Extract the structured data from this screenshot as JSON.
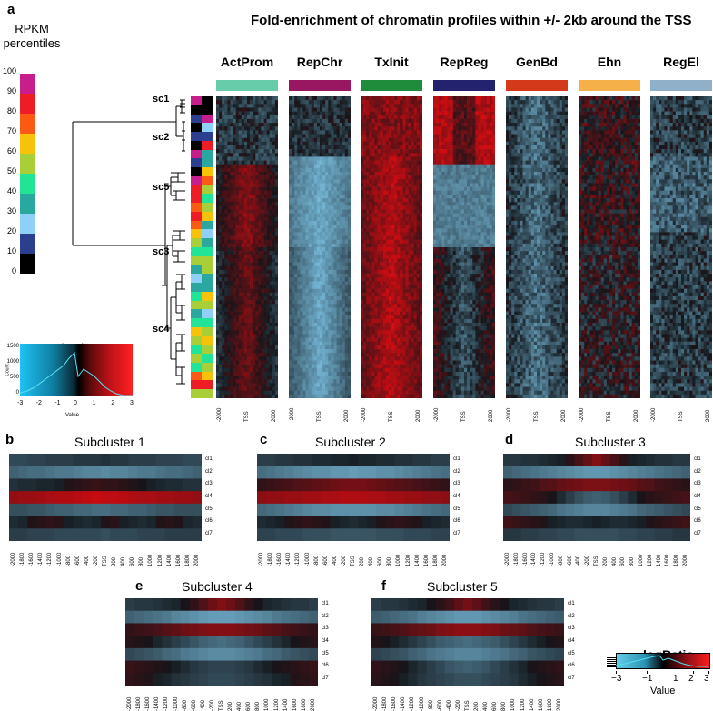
{
  "panel_a": {
    "letter": "a",
    "title": "Fold-enrichment of chromatin profiles within +/- 2kb around the TSS",
    "rpkm_title_line1": "RPKM",
    "rpkm_title_line2": "percentiles",
    "percentiles": [
      "100",
      "90",
      "80",
      "70",
      "60",
      "50",
      "40",
      "30",
      "20",
      "10",
      "0"
    ],
    "percentile_colors": [
      "#c81e8c",
      "#ee1c24",
      "#fb5a14",
      "#f6c20a",
      "#a9cf38",
      "#22e496",
      "#2aa8a0",
      "#8ed0f6",
      "#2b3f8e",
      "#000000"
    ],
    "columns": [
      {
        "label": "ActProm",
        "color": "#66ccaa"
      },
      {
        "label": "RepChr",
        "color": "#991660"
      },
      {
        "label": "TxInit",
        "color": "#1e8c3a"
      },
      {
        "label": "RepReg",
        "color": "#22226e"
      },
      {
        "label": "GenBd",
        "color": "#d43a1a"
      },
      {
        "label": "Ehn",
        "color": "#f6b04a"
      },
      {
        "label": "RegEl",
        "color": "#8fb0c8"
      }
    ],
    "subclusters": [
      "sc1",
      "sc2",
      "sc5",
      "sc3",
      "sc4"
    ],
    "x_ticks": [
      "-2000",
      "TSS",
      "2000"
    ],
    "key": {
      "title": "logRatio",
      "ylabel": "Count",
      "xlabel": "Value",
      "yticks": [
        "0",
        "500",
        "1000",
        "1500"
      ],
      "xticks": [
        "-3",
        "-2",
        "-1",
        "0",
        "1",
        "2",
        "3"
      ]
    }
  },
  "subcluster_panels": [
    {
      "letter": "b",
      "title": "Subcluster 1"
    },
    {
      "letter": "c",
      "title": "Subcluster 2"
    },
    {
      "letter": "d",
      "title": "Subcluster 3"
    },
    {
      "letter": "e",
      "title": "Subcluster 4"
    },
    {
      "letter": "f",
      "title": "Subcluster 5"
    }
  ],
  "row_labels": [
    "cl1",
    "cl2",
    "cl3",
    "cl4",
    "cl5",
    "cl6",
    "cl7"
  ],
  "bin_labels": [
    "-2000",
    "-1800",
    "-1600",
    "-1400",
    "-1200",
    "-1000",
    "-800",
    "-600",
    "-400",
    "-200",
    "TSS",
    "200",
    "400",
    "600",
    "800",
    "1000",
    "1200",
    "1400",
    "1600",
    "1800",
    "2000"
  ],
  "legend": {
    "title": "logRatio",
    "ticks": [
      "−3",
      "−1",
      "1",
      "2",
      "3"
    ],
    "xlabel": "Value"
  },
  "chart_data": [
    {
      "type": "heatmap",
      "title": "Subcluster 1",
      "rows": [
        "cl1",
        "cl2",
        "cl3",
        "cl4",
        "cl5",
        "cl6",
        "cl7"
      ],
      "columns": [
        "-2000",
        "-1800",
        "-1600",
        "-1400",
        "-1200",
        "-1000",
        "-800",
        "-600",
        "-400",
        "-200",
        "TSS",
        "200",
        "400",
        "600",
        "800",
        "1000",
        "1200",
        "1400",
        "1600",
        "1800",
        "2000"
      ],
      "values": [
        [
          -0.8,
          -0.8,
          -0.7,
          -0.7,
          -0.6,
          -0.6,
          -0.6,
          -0.5,
          -0.5,
          -0.5,
          -0.4,
          -0.5,
          -0.5,
          -0.6,
          -0.6,
          -0.6,
          -0.7,
          -0.7,
          -0.7,
          -0.8,
          -0.8
        ],
        [
          -1.2,
          -1.3,
          -1.4,
          -1.4,
          -1.5,
          -1.6,
          -1.6,
          -1.7,
          -1.8,
          -1.8,
          -1.9,
          -1.8,
          -1.8,
          -1.7,
          -1.6,
          -1.6,
          -1.5,
          -1.4,
          -1.4,
          -1.3,
          -1.2
        ],
        [
          -0.4,
          -0.3,
          -0.3,
          -0.2,
          -0.2,
          -0.1,
          0.1,
          0.2,
          0.3,
          0.4,
          0.3,
          0.3,
          0.2,
          0.1,
          0.0,
          -0.1,
          -0.2,
          -0.3,
          -0.3,
          -0.4,
          -0.4
        ],
        [
          1.6,
          1.7,
          1.7,
          1.8,
          1.9,
          2.0,
          2.0,
          2.1,
          2.2,
          2.3,
          2.2,
          2.2,
          2.1,
          2.0,
          1.9,
          1.9,
          1.8,
          1.8,
          1.7,
          1.7,
          1.6
        ],
        [
          -0.9,
          -0.9,
          -1.0,
          -1.0,
          -1.1,
          -1.2,
          -1.2,
          -1.3,
          -1.3,
          -1.4,
          -1.4,
          -1.3,
          -1.3,
          -1.2,
          -1.2,
          -1.1,
          -1.0,
          -1.0,
          -0.9,
          -0.9,
          -0.9
        ],
        [
          -0.3,
          -0.2,
          0.1,
          0.2,
          0.3,
          0.2,
          -0.1,
          -0.2,
          -0.3,
          -0.2,
          0.1,
          0.2,
          -0.1,
          -0.2,
          -0.3,
          -0.2,
          0.1,
          0.2,
          0.1,
          -0.2,
          -0.3
        ],
        [
          -0.6,
          -0.6,
          -0.7,
          -0.7,
          -0.7,
          -0.8,
          -0.8,
          -0.8,
          -0.8,
          -0.8,
          -0.9,
          -0.8,
          -0.8,
          -0.8,
          -0.7,
          -0.7,
          -0.7,
          -0.6,
          -0.6,
          -0.6,
          -0.6
        ]
      ],
      "colorscale": [
        -3,
        3
      ]
    },
    {
      "type": "heatmap",
      "title": "Subcluster 2",
      "rows": [
        "cl1",
        "cl2",
        "cl3",
        "cl4",
        "cl5",
        "cl6",
        "cl7"
      ],
      "columns": [
        "-2000",
        "-1800",
        "-1600",
        "-1400",
        "-1200",
        "-1000",
        "-800",
        "-600",
        "-400",
        "-200",
        "TSS",
        "200",
        "400",
        "600",
        "800",
        "1000",
        "1200",
        "1400",
        "1600",
        "1800",
        "2000"
      ],
      "values": [
        [
          -0.6,
          -0.6,
          -0.5,
          -0.5,
          -0.4,
          -0.4,
          -0.3,
          -0.3,
          -0.2,
          -0.2,
          -0.1,
          -0.2,
          -0.2,
          -0.3,
          -0.3,
          -0.4,
          -0.4,
          -0.5,
          -0.5,
          -0.6,
          -0.6
        ],
        [
          -1.4,
          -1.5,
          -1.6,
          -1.7,
          -1.8,
          -1.9,
          -2.0,
          -2.0,
          -2.1,
          -2.1,
          -2.2,
          -2.1,
          -2.1,
          -2.0,
          -2.0,
          -1.9,
          -1.8,
          -1.7,
          -1.6,
          -1.5,
          -1.4
        ],
        [
          0.3,
          0.4,
          0.5,
          0.6,
          0.7,
          0.8,
          0.9,
          1.0,
          1.1,
          1.2,
          1.2,
          1.2,
          1.1,
          1.0,
          0.9,
          0.8,
          0.7,
          0.6,
          0.5,
          0.4,
          0.3
        ],
        [
          1.5,
          1.6,
          1.6,
          1.7,
          1.7,
          1.8,
          1.8,
          1.9,
          1.9,
          2.0,
          2.0,
          2.0,
          1.9,
          1.9,
          1.8,
          1.8,
          1.7,
          1.7,
          1.6,
          1.6,
          1.5
        ],
        [
          -1.3,
          -1.4,
          -1.5,
          -1.6,
          -1.7,
          -1.8,
          -1.9,
          -1.9,
          -2.0,
          -2.0,
          -2.0,
          -2.0,
          -2.0,
          -1.9,
          -1.9,
          -1.8,
          -1.7,
          -1.6,
          -1.5,
          -1.4,
          -1.3
        ],
        [
          -0.3,
          -0.2,
          -0.1,
          0.1,
          0.2,
          0.3,
          0.2,
          0.1,
          -0.1,
          -0.2,
          -0.3,
          -0.2,
          -0.1,
          0.1,
          0.2,
          0.3,
          0.2,
          0.1,
          -0.1,
          -0.2,
          -0.3
        ],
        [
          -0.7,
          -0.7,
          -0.8,
          -0.8,
          -0.8,
          -0.9,
          -0.9,
          -0.9,
          -1.0,
          -1.0,
          -1.0,
          -1.0,
          -1.0,
          -0.9,
          -0.9,
          -0.9,
          -0.8,
          -0.8,
          -0.8,
          -0.7,
          -0.7
        ]
      ],
      "colorscale": [
        -3,
        3
      ]
    },
    {
      "type": "heatmap",
      "title": "Subcluster 3",
      "rows": [
        "cl1",
        "cl2",
        "cl3",
        "cl4",
        "cl5",
        "cl6",
        "cl7"
      ],
      "columns": [
        "-2000",
        "-1800",
        "-1600",
        "-1400",
        "-1200",
        "-1000",
        "-800",
        "-600",
        "-400",
        "-200",
        "TSS",
        "200",
        "400",
        "600",
        "800",
        "1000",
        "1200",
        "1400",
        "1600",
        "1800",
        "2000"
      ],
      "values": [
        [
          -0.5,
          -0.5,
          -0.4,
          -0.4,
          -0.3,
          -0.2,
          -0.1,
          0.2,
          0.6,
          1.0,
          1.4,
          1.0,
          0.6,
          0.2,
          -0.1,
          -0.2,
          -0.3,
          -0.4,
          -0.4,
          -0.5,
          -0.5
        ],
        [
          -1.2,
          -1.3,
          -1.4,
          -1.5,
          -1.6,
          -1.7,
          -1.8,
          -1.9,
          -2.0,
          -2.1,
          -2.1,
          -2.1,
          -2.0,
          -1.9,
          -1.8,
          -1.7,
          -1.6,
          -1.5,
          -1.4,
          -1.3,
          -1.2
        ],
        [
          0.2,
          0.3,
          0.4,
          0.5,
          0.7,
          0.8,
          1.0,
          1.1,
          1.2,
          1.3,
          1.3,
          1.3,
          1.2,
          1.1,
          1.0,
          0.8,
          0.7,
          0.5,
          0.4,
          0.3,
          0.2
        ],
        [
          0.6,
          0.5,
          0.4,
          0.3,
          0.2,
          0.0,
          -0.3,
          -0.6,
          -0.9,
          -1.1,
          -1.2,
          -1.1,
          -0.9,
          -0.6,
          -0.3,
          0.0,
          0.2,
          0.3,
          0.4,
          0.5,
          0.6
        ],
        [
          -0.8,
          -0.9,
          -1.0,
          -1.1,
          -1.2,
          -1.3,
          -1.5,
          -1.6,
          -1.7,
          -1.8,
          -1.8,
          -1.8,
          -1.7,
          -1.6,
          -1.5,
          -1.3,
          -1.2,
          -1.1,
          -1.0,
          -0.9,
          -0.8
        ],
        [
          0.5,
          0.4,
          0.3,
          0.2,
          0.1,
          -0.1,
          -0.2,
          -0.3,
          -0.3,
          -0.2,
          -0.1,
          -0.2,
          -0.3,
          -0.3,
          -0.2,
          -0.1,
          0.1,
          0.2,
          0.3,
          0.4,
          0.5
        ],
        [
          -0.5,
          -0.5,
          -0.6,
          -0.6,
          -0.7,
          -0.7,
          -0.8,
          -0.8,
          -0.9,
          -0.9,
          -0.9,
          -0.9,
          -0.9,
          -0.8,
          -0.8,
          -0.7,
          -0.7,
          -0.6,
          -0.6,
          -0.5,
          -0.5
        ]
      ],
      "colorscale": [
        -3,
        3
      ]
    },
    {
      "type": "heatmap",
      "title": "Subcluster 4",
      "rows": [
        "cl1",
        "cl2",
        "cl3",
        "cl4",
        "cl5",
        "cl6",
        "cl7"
      ],
      "columns": [
        "-2000",
        "-1800",
        "-1600",
        "-1400",
        "-1200",
        "-1000",
        "-800",
        "-600",
        "-400",
        "-200",
        "TSS",
        "200",
        "400",
        "600",
        "800",
        "1000",
        "1200",
        "1400",
        "1600",
        "1800",
        "2000"
      ],
      "values": [
        [
          -0.6,
          -0.5,
          -0.5,
          -0.4,
          -0.3,
          -0.2,
          0.0,
          0.3,
          0.7,
          1.1,
          1.4,
          1.1,
          0.7,
          0.3,
          0.0,
          -0.2,
          -0.3,
          -0.4,
          -0.5,
          -0.5,
          -0.6
        ],
        [
          -1.2,
          -1.3,
          -1.4,
          -1.5,
          -1.6,
          -1.8,
          -1.9,
          -2.0,
          -2.1,
          -2.2,
          -2.2,
          -2.2,
          -2.1,
          -2.0,
          -1.9,
          -1.8,
          -1.6,
          -1.5,
          -1.4,
          -1.3,
          -1.2
        ],
        [
          0.3,
          0.4,
          0.5,
          0.6,
          0.8,
          0.9,
          1.1,
          1.2,
          1.3,
          1.4,
          1.4,
          1.4,
          1.3,
          1.2,
          1.1,
          0.9,
          0.8,
          0.6,
          0.5,
          0.4,
          0.3
        ],
        [
          0.2,
          0.1,
          0.0,
          -0.2,
          -0.4,
          -0.6,
          -0.8,
          -1.0,
          -1.2,
          -1.3,
          -1.4,
          -1.3,
          -1.2,
          -1.0,
          -0.8,
          -0.6,
          -0.4,
          -0.2,
          0.0,
          0.1,
          0.2
        ],
        [
          -0.8,
          -0.9,
          -1.0,
          -1.1,
          -1.3,
          -1.4,
          -1.6,
          -1.7,
          -1.8,
          -1.9,
          -1.9,
          -1.9,
          -1.8,
          -1.7,
          -1.6,
          -1.4,
          -1.3,
          -1.1,
          -1.0,
          -0.9,
          -0.8
        ],
        [
          0.4,
          0.3,
          0.2,
          0.1,
          0.0,
          -0.1,
          -0.3,
          -0.5,
          -0.6,
          -0.7,
          -0.7,
          -0.7,
          -0.6,
          -0.5,
          -0.3,
          -0.1,
          0.0,
          0.1,
          0.2,
          0.3,
          0.4
        ],
        [
          0.3,
          0.2,
          0.1,
          -0.1,
          -0.2,
          -0.4,
          -0.5,
          -0.6,
          -0.7,
          -0.8,
          -0.8,
          -0.8,
          -0.7,
          -0.6,
          -0.5,
          -0.4,
          -0.2,
          -0.1,
          0.1,
          0.2,
          0.3
        ]
      ],
      "colorscale": [
        -3,
        3
      ]
    },
    {
      "type": "heatmap",
      "title": "Subcluster 5",
      "rows": [
        "cl1",
        "cl2",
        "cl3",
        "cl4",
        "cl5",
        "cl6",
        "cl7"
      ],
      "columns": [
        "-2000",
        "-1800",
        "-1600",
        "-1400",
        "-1200",
        "-1000",
        "-800",
        "-600",
        "-400",
        "-200",
        "TSS",
        "200",
        "400",
        "600",
        "800",
        "1000",
        "1200",
        "1400",
        "1600",
        "1800",
        "2000"
      ],
      "values": [
        [
          -0.6,
          -0.5,
          -0.5,
          -0.4,
          -0.3,
          -0.2,
          0.0,
          0.2,
          0.5,
          0.9,
          1.2,
          0.9,
          0.5,
          0.2,
          0.0,
          -0.2,
          -0.3,
          -0.4,
          -0.5,
          -0.5,
          -0.6
        ],
        [
          -1.1,
          -1.2,
          -1.3,
          -1.4,
          -1.5,
          -1.7,
          -1.8,
          -1.9,
          -2.0,
          -2.1,
          -2.1,
          -2.1,
          -2.0,
          -1.9,
          -1.8,
          -1.7,
          -1.5,
          -1.4,
          -1.3,
          -1.2,
          -1.1
        ],
        [
          0.4,
          0.5,
          0.6,
          0.7,
          0.9,
          1.0,
          1.1,
          1.3,
          1.4,
          1.5,
          1.5,
          1.5,
          1.4,
          1.3,
          1.1,
          1.0,
          0.9,
          0.7,
          0.6,
          0.5,
          0.4
        ],
        [
          0.1,
          0.0,
          -0.1,
          -0.3,
          -0.5,
          -0.7,
          -0.9,
          -1.1,
          -1.2,
          -1.3,
          -1.4,
          -1.3,
          -1.2,
          -1.1,
          -0.9,
          -0.7,
          -0.5,
          -0.3,
          -0.1,
          0.0,
          0.1
        ],
        [
          -0.7,
          -0.8,
          -0.9,
          -1.0,
          -1.2,
          -1.3,
          -1.5,
          -1.6,
          -1.7,
          -1.8,
          -1.8,
          -1.8,
          -1.7,
          -1.6,
          -1.5,
          -1.3,
          -1.2,
          -1.0,
          -0.9,
          -0.8,
          -0.7
        ],
        [
          0.3,
          0.2,
          0.1,
          0.0,
          -0.2,
          -0.4,
          -0.6,
          -0.8,
          -1.0,
          -1.1,
          -1.2,
          -1.1,
          -1.0,
          -0.8,
          -0.6,
          -0.4,
          -0.2,
          0.0,
          0.1,
          0.2,
          0.3
        ],
        [
          0.2,
          0.1,
          0.0,
          -0.1,
          -0.3,
          -0.5,
          -0.6,
          -0.7,
          -0.8,
          -0.9,
          -0.9,
          -0.9,
          -0.8,
          -0.7,
          -0.6,
          -0.5,
          -0.3,
          -0.1,
          0.0,
          0.1,
          0.2
        ]
      ],
      "colorscale": [
        -3,
        3
      ]
    }
  ]
}
